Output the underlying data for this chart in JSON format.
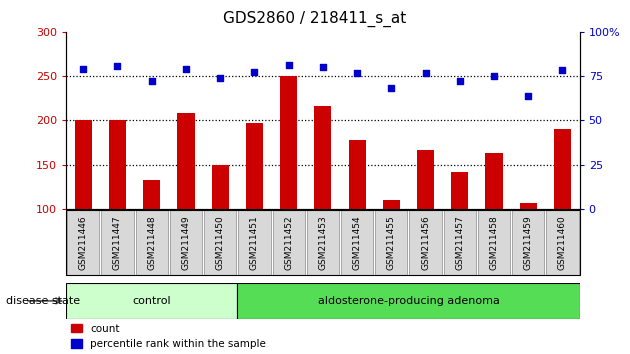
{
  "title": "GDS2860 / 218411_s_at",
  "samples": [
    "GSM211446",
    "GSM211447",
    "GSM211448",
    "GSM211449",
    "GSM211450",
    "GSM211451",
    "GSM211452",
    "GSM211453",
    "GSM211454",
    "GSM211455",
    "GSM211456",
    "GSM211457",
    "GSM211458",
    "GSM211459",
    "GSM211460"
  ],
  "bar_values": [
    200,
    200,
    133,
    208,
    150,
    197,
    250,
    216,
    178,
    110,
    167,
    142,
    163,
    107,
    190
  ],
  "dot_values_left": [
    258,
    261,
    244,
    258,
    248,
    255,
    263,
    260,
    253,
    237,
    254,
    245,
    250,
    227,
    257
  ],
  "bar_color": "#cc0000",
  "dot_color": "#0000cc",
  "ylim_left": [
    100,
    300
  ],
  "ylim_right": [
    0,
    100
  ],
  "yticks_left": [
    100,
    150,
    200,
    250,
    300
  ],
  "yticks_right": [
    0,
    25,
    50,
    75,
    100
  ],
  "yticklabels_right": [
    "0",
    "25",
    "50",
    "75",
    "100%"
  ],
  "hlines": [
    150,
    200,
    250
  ],
  "control_count": 5,
  "control_label": "control",
  "adenoma_label": "aldosterone-producing adenoma",
  "disease_state_label": "disease state",
  "legend_bar": "count",
  "legend_dot": "percentile rank within the sample",
  "control_color": "#ccffcc",
  "adenoma_color": "#55dd55",
  "bg_color": "#d8d8d8",
  "plot_bg": "#ffffff",
  "title_fontsize": 11,
  "tick_fontsize": 8,
  "label_fontsize": 8
}
